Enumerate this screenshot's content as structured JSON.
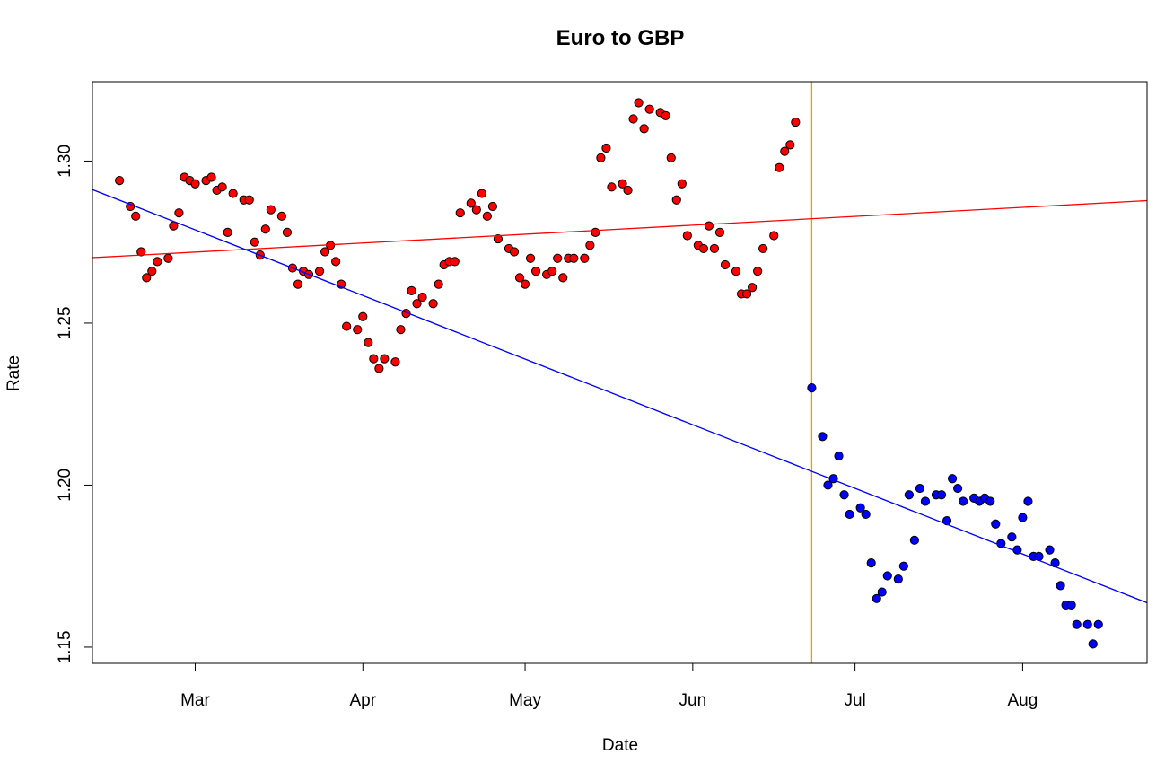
{
  "chart_data": {
    "type": "scatter",
    "title": "Euro to GBP",
    "xlabel": "Date",
    "ylabel": "Rate",
    "x_range": [
      "2016-02-11",
      "2016-08-24"
    ],
    "ylim": [
      1.145,
      1.3245
    ],
    "x_ticks": [
      {
        "date": "2016-03-01",
        "label": "Mar"
      },
      {
        "date": "2016-04-01",
        "label": "Apr"
      },
      {
        "date": "2016-05-01",
        "label": "May"
      },
      {
        "date": "2016-06-01",
        "label": "Jun"
      },
      {
        "date": "2016-07-01",
        "label": "Jul"
      },
      {
        "date": "2016-08-01",
        "label": "Aug"
      }
    ],
    "y_ticks": [
      {
        "value": 1.15,
        "label": "1.15"
      },
      {
        "value": 1.2,
        "label": "1.20"
      },
      {
        "value": 1.25,
        "label": "1.25"
      },
      {
        "value": 1.3,
        "label": "1.30"
      }
    ],
    "grid": false,
    "series": [
      {
        "color": "#ff0000",
        "points": [
          [
            "2016-02-16",
            1.294
          ],
          [
            "2016-02-18",
            1.286
          ],
          [
            "2016-02-19",
            1.283
          ],
          [
            "2016-02-20",
            1.272
          ],
          [
            "2016-02-21",
            1.264
          ],
          [
            "2016-02-22",
            1.266
          ],
          [
            "2016-02-23",
            1.269
          ],
          [
            "2016-02-25",
            1.27
          ],
          [
            "2016-02-26",
            1.28
          ],
          [
            "2016-02-27",
            1.284
          ],
          [
            "2016-02-28",
            1.295
          ],
          [
            "2016-02-29",
            1.294
          ],
          [
            "2016-03-01",
            1.293
          ],
          [
            "2016-03-03",
            1.294
          ],
          [
            "2016-03-04",
            1.295
          ],
          [
            "2016-03-05",
            1.291
          ],
          [
            "2016-03-06",
            1.292
          ],
          [
            "2016-03-07",
            1.278
          ],
          [
            "2016-03-08",
            1.29
          ],
          [
            "2016-03-10",
            1.288
          ],
          [
            "2016-03-11",
            1.288
          ],
          [
            "2016-03-12",
            1.275
          ],
          [
            "2016-03-13",
            1.271
          ],
          [
            "2016-03-14",
            1.279
          ],
          [
            "2016-03-15",
            1.285
          ],
          [
            "2016-03-17",
            1.283
          ],
          [
            "2016-03-18",
            1.278
          ],
          [
            "2016-03-19",
            1.267
          ],
          [
            "2016-03-20",
            1.262
          ],
          [
            "2016-03-21",
            1.266
          ],
          [
            "2016-03-22",
            1.265
          ],
          [
            "2016-03-24",
            1.266
          ],
          [
            "2016-03-25",
            1.272
          ],
          [
            "2016-03-26",
            1.274
          ],
          [
            "2016-03-27",
            1.269
          ],
          [
            "2016-03-28",
            1.262
          ],
          [
            "2016-03-29",
            1.249
          ],
          [
            "2016-03-31",
            1.248
          ],
          [
            "2016-04-01",
            1.252
          ],
          [
            "2016-04-02",
            1.244
          ],
          [
            "2016-04-03",
            1.239
          ],
          [
            "2016-04-04",
            1.236
          ],
          [
            "2016-04-05",
            1.239
          ],
          [
            "2016-04-07",
            1.238
          ],
          [
            "2016-04-08",
            1.248
          ],
          [
            "2016-04-09",
            1.253
          ],
          [
            "2016-04-10",
            1.26
          ],
          [
            "2016-04-11",
            1.256
          ],
          [
            "2016-04-12",
            1.258
          ],
          [
            "2016-04-14",
            1.256
          ],
          [
            "2016-04-15",
            1.262
          ],
          [
            "2016-04-16",
            1.268
          ],
          [
            "2016-04-17",
            1.269
          ],
          [
            "2016-04-18",
            1.269
          ],
          [
            "2016-04-19",
            1.284
          ],
          [
            "2016-04-21",
            1.287
          ],
          [
            "2016-04-22",
            1.285
          ],
          [
            "2016-04-23",
            1.29
          ],
          [
            "2016-04-24",
            1.283
          ],
          [
            "2016-04-25",
            1.286
          ],
          [
            "2016-04-26",
            1.276
          ],
          [
            "2016-04-28",
            1.273
          ],
          [
            "2016-04-29",
            1.272
          ],
          [
            "2016-04-30",
            1.264
          ],
          [
            "2016-05-01",
            1.262
          ],
          [
            "2016-05-02",
            1.27
          ],
          [
            "2016-05-03",
            1.266
          ],
          [
            "2016-05-05",
            1.265
          ],
          [
            "2016-05-06",
            1.266
          ],
          [
            "2016-05-07",
            1.27
          ],
          [
            "2016-05-08",
            1.264
          ],
          [
            "2016-05-09",
            1.27
          ],
          [
            "2016-05-10",
            1.27
          ],
          [
            "2016-05-12",
            1.27
          ],
          [
            "2016-05-13",
            1.274
          ],
          [
            "2016-05-14",
            1.278
          ],
          [
            "2016-05-15",
            1.301
          ],
          [
            "2016-05-16",
            1.304
          ],
          [
            "2016-05-17",
            1.292
          ],
          [
            "2016-05-19",
            1.293
          ],
          [
            "2016-05-20",
            1.291
          ],
          [
            "2016-05-21",
            1.313
          ],
          [
            "2016-05-22",
            1.318
          ],
          [
            "2016-05-23",
            1.31
          ],
          [
            "2016-05-24",
            1.316
          ],
          [
            "2016-05-26",
            1.315
          ],
          [
            "2016-05-27",
            1.314
          ],
          [
            "2016-05-28",
            1.301
          ],
          [
            "2016-05-29",
            1.288
          ],
          [
            "2016-05-30",
            1.293
          ],
          [
            "2016-05-31",
            1.277
          ],
          [
            "2016-06-02",
            1.274
          ],
          [
            "2016-06-03",
            1.273
          ],
          [
            "2016-06-04",
            1.28
          ],
          [
            "2016-06-05",
            1.273
          ],
          [
            "2016-06-06",
            1.278
          ],
          [
            "2016-06-07",
            1.268
          ],
          [
            "2016-06-09",
            1.266
          ],
          [
            "2016-06-10",
            1.259
          ],
          [
            "2016-06-11",
            1.259
          ],
          [
            "2016-06-12",
            1.261
          ],
          [
            "2016-06-13",
            1.266
          ],
          [
            "2016-06-14",
            1.273
          ],
          [
            "2016-06-16",
            1.277
          ],
          [
            "2016-06-17",
            1.298
          ],
          [
            "2016-06-18",
            1.303
          ],
          [
            "2016-06-19",
            1.305
          ],
          [
            "2016-06-20",
            1.312
          ]
        ]
      },
      {
        "color": "#0000ff",
        "points": [
          [
            "2016-06-23",
            1.23
          ],
          [
            "2016-06-25",
            1.215
          ],
          [
            "2016-06-26",
            1.2
          ],
          [
            "2016-06-27",
            1.202
          ],
          [
            "2016-06-28",
            1.209
          ],
          [
            "2016-06-29",
            1.197
          ],
          [
            "2016-06-30",
            1.191
          ],
          [
            "2016-07-02",
            1.193
          ],
          [
            "2016-07-03",
            1.191
          ],
          [
            "2016-07-04",
            1.176
          ],
          [
            "2016-07-05",
            1.165
          ],
          [
            "2016-07-06",
            1.167
          ],
          [
            "2016-07-07",
            1.172
          ],
          [
            "2016-07-09",
            1.171
          ],
          [
            "2016-07-10",
            1.175
          ],
          [
            "2016-07-11",
            1.197
          ],
          [
            "2016-07-12",
            1.183
          ],
          [
            "2016-07-13",
            1.199
          ],
          [
            "2016-07-14",
            1.195
          ],
          [
            "2016-07-16",
            1.197
          ],
          [
            "2016-07-17",
            1.197
          ],
          [
            "2016-07-18",
            1.189
          ],
          [
            "2016-07-19",
            1.202
          ],
          [
            "2016-07-20",
            1.199
          ],
          [
            "2016-07-21",
            1.195
          ],
          [
            "2016-07-23",
            1.196
          ],
          [
            "2016-07-24",
            1.195
          ],
          [
            "2016-07-25",
            1.196
          ],
          [
            "2016-07-26",
            1.195
          ],
          [
            "2016-07-27",
            1.188
          ],
          [
            "2016-07-28",
            1.182
          ],
          [
            "2016-07-30",
            1.184
          ],
          [
            "2016-07-31",
            1.18
          ],
          [
            "2016-08-01",
            1.19
          ],
          [
            "2016-08-02",
            1.195
          ],
          [
            "2016-08-03",
            1.178
          ],
          [
            "2016-08-04",
            1.178
          ],
          [
            "2016-08-06",
            1.18
          ],
          [
            "2016-08-07",
            1.176
          ],
          [
            "2016-08-08",
            1.169
          ],
          [
            "2016-08-09",
            1.163
          ],
          [
            "2016-08-10",
            1.163
          ],
          [
            "2016-08-11",
            1.157
          ],
          [
            "2016-08-13",
            1.157
          ],
          [
            "2016-08-14",
            1.151
          ],
          [
            "2016-08-15",
            1.157
          ]
        ]
      }
    ],
    "trend_lines": [
      {
        "color": "#ff0000",
        "from": [
          "2016-02-11",
          1.2702
        ],
        "to": [
          "2016-08-24",
          1.2878
        ]
      },
      {
        "color": "#0000ff",
        "from": [
          "2016-02-11",
          1.2912
        ],
        "to": [
          "2016-08-24",
          1.1637
        ]
      }
    ],
    "vertical_line": {
      "date": "2016-06-23",
      "color": "#e69f00"
    }
  }
}
